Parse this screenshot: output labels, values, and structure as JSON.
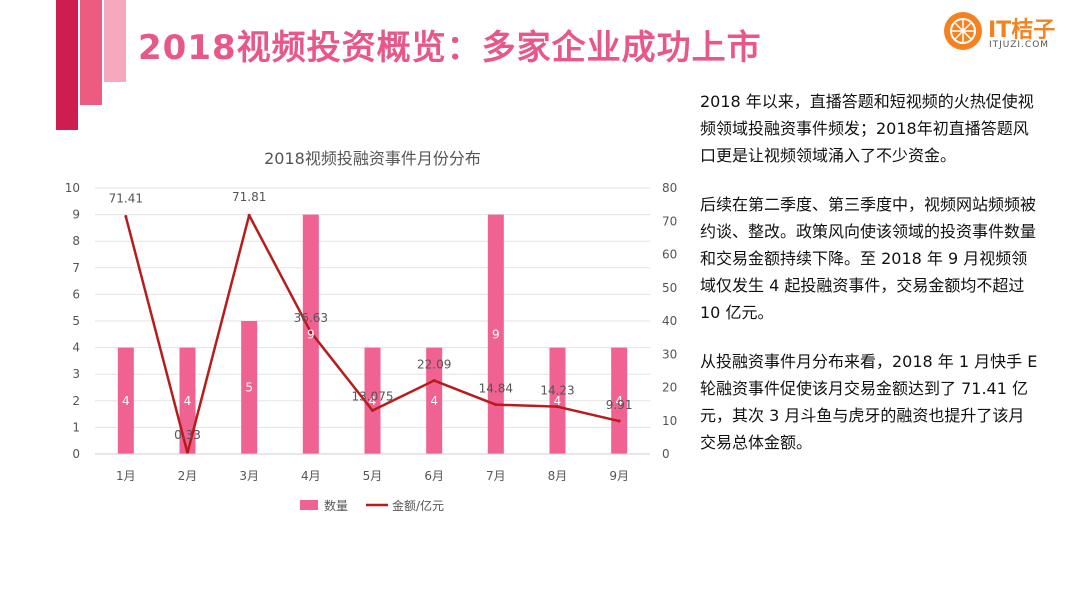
{
  "page_title": "2018视频投资概览：多家企业成功上市",
  "logo": {
    "name": "IT桔子",
    "sub": "ITJUZI.COM"
  },
  "paragraphs": [
    "2018 年以来，直播答题和短视频的火热促使视频领域投融资事件频发；2018年初直播答题风口更是让视频领域涌入了不少资金。",
    "后续在第二季度、第三季度中，视频网站频频被约谈、整改。政策风向使该领域的投资事件数量和交易金额持续下降。至 2018 年 9 月视频领域仅发生 4 起投融资事件，交易金额均不超过 10 亿元。",
    "从投融资事件月分布来看，2018 年 1 月快手 E 轮融资事件促使该月交易金额达到了 71.41 亿元，其次 3 月斗鱼与虎牙的融资也提升了该月交易总体金额。"
  ],
  "chart_data": {
    "type": "bar+line",
    "title": "2018视频投融资事件月份分布",
    "categories": [
      "1月",
      "2月",
      "3月",
      "4月",
      "5月",
      "6月",
      "7月",
      "8月",
      "9月"
    ],
    "series": [
      {
        "name": "数量",
        "type": "bar",
        "axis": "left",
        "values": [
          4,
          4,
          5,
          9,
          4,
          4,
          9,
          4,
          4
        ],
        "color": "#f06292"
      },
      {
        "name": "金额/亿元",
        "type": "line",
        "axis": "right",
        "values": [
          71.41,
          0.33,
          71.81,
          36.63,
          13.075,
          22.09,
          14.84,
          14.23,
          9.91
        ],
        "labels": [
          "71.41",
          "0.33",
          "71.81",
          "36.63",
          "13.075",
          "22.09",
          "14.84",
          "14.23",
          "9.91"
        ],
        "color": "#b71c1c"
      }
    ],
    "y_left": {
      "min": 0,
      "max": 10,
      "ticks": [
        "0",
        "1",
        "2",
        "3",
        "4",
        "5",
        "6",
        "7",
        "8",
        "9",
        "10"
      ]
    },
    "y_right": {
      "min": 0,
      "max": 80,
      "ticks": [
        "0",
        "10",
        "20",
        "30",
        "40",
        "50",
        "60",
        "70",
        "80"
      ]
    },
    "legend": "bottom",
    "grid": true
  }
}
